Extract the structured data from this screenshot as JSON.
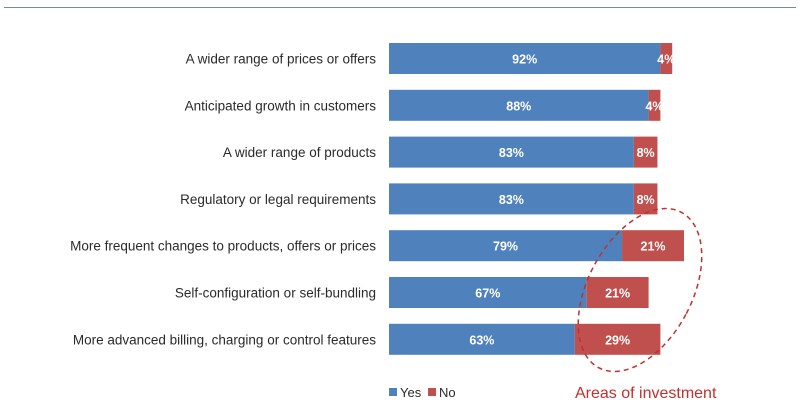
{
  "chart_data": {
    "type": "bar",
    "orientation": "horizontal",
    "stacked": true,
    "categories": [
      "A wider range of prices or offers",
      "Anticipated growth in customers",
      "A wider range of products",
      "Regulatory or legal requirements",
      "More frequent changes to products, offers or prices",
      "Self-configuration or self-bundling",
      "More advanced billing, charging or control features"
    ],
    "series": [
      {
        "name": "Yes",
        "color": "#4f81bd",
        "values": [
          92,
          88,
          83,
          83,
          79,
          67,
          63
        ],
        "labels": [
          "92%",
          "88%",
          "83%",
          "83%",
          "79%",
          "67%",
          "63%"
        ]
      },
      {
        "name": "No",
        "color": "#c0504d",
        "values": [
          4,
          4,
          8,
          8,
          21,
          21,
          29
        ],
        "labels": [
          "4%",
          "4%",
          "8%",
          "8%",
          "21%",
          "21%",
          "29%"
        ]
      }
    ],
    "xlim": [
      0,
      100
    ],
    "grid": false,
    "legend": "bottom",
    "annotation": {
      "text": "Areas of investment",
      "color": "#c0302c",
      "style": "dashed ellipse around the No segments of the last three bars"
    }
  }
}
